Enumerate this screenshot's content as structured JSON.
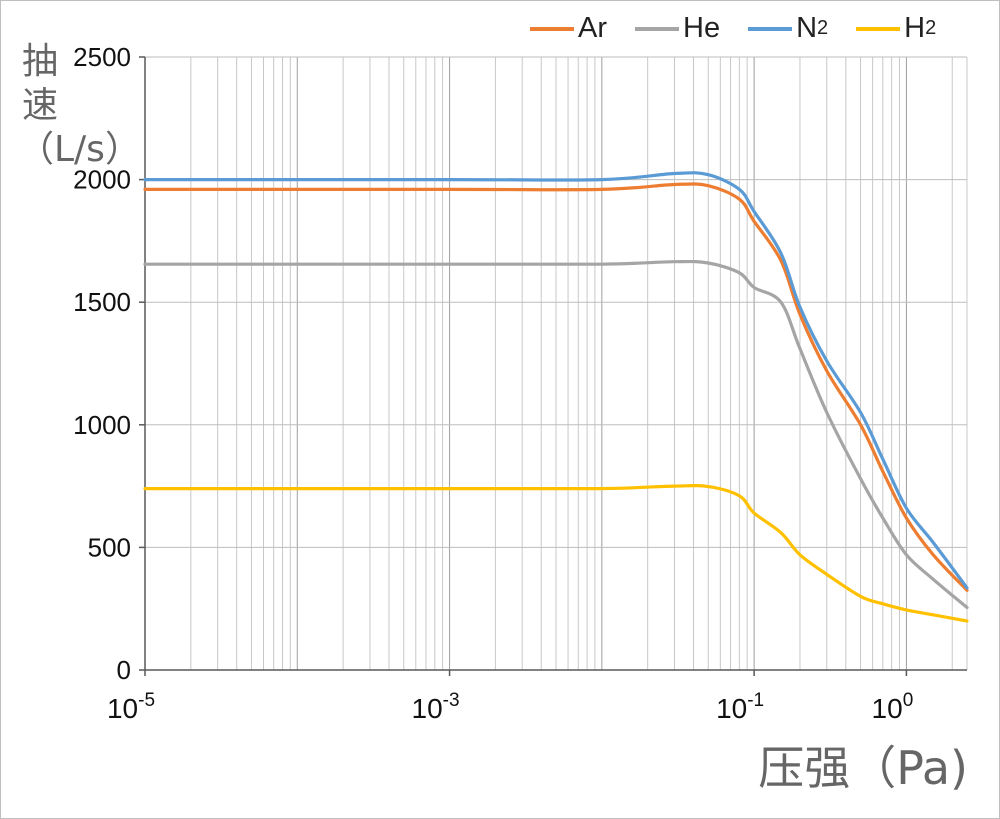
{
  "chart_data": {
    "type": "line",
    "title": "",
    "xlabel": "压强（Pa)",
    "ylabel": "抽速（L/s）",
    "xscale": "log",
    "xlim": [
      1e-05,
      2.5
    ],
    "ylim": [
      0,
      2500
    ],
    "yticks": [
      "0",
      "500",
      "1000",
      "1500",
      "2000",
      "2500"
    ],
    "xticks": [
      {
        "base": "10",
        "exp": "-5",
        "value": 1e-05
      },
      {
        "base": "10",
        "exp": "-3",
        "value": 0.001
      },
      {
        "base": "10",
        "exp": "-1",
        "value": 0.1
      },
      {
        "base": "10",
        "exp": "0",
        "value": 1
      }
    ],
    "grid": true,
    "legend_position": "top-right",
    "x": [
      1e-05,
      0.001,
      0.01,
      0.03,
      0.05,
      0.08,
      0.1,
      0.15,
      0.2,
      0.3,
      0.5,
      0.7,
      1.0,
      1.5,
      2.5
    ],
    "series": [
      {
        "name": "Ar",
        "color": "#ED7D31",
        "values": [
          1960,
          1960,
          1960,
          1980,
          1975,
          1920,
          1830,
          1670,
          1450,
          1220,
          1000,
          810,
          620,
          470,
          325
        ]
      },
      {
        "name": "He",
        "color": "#A5A5A5",
        "values": [
          1655,
          1655,
          1655,
          1665,
          1660,
          1620,
          1560,
          1500,
          1310,
          1050,
          780,
          620,
          470,
          370,
          255
        ]
      },
      {
        "name": "N2",
        "color": "#5B9BD5",
        "values": [
          2000,
          2000,
          2000,
          2025,
          2020,
          1960,
          1870,
          1700,
          1480,
          1260,
          1050,
          860,
          660,
          520,
          335
        ]
      },
      {
        "name": "H2",
        "color": "#FFC000",
        "values": [
          740,
          740,
          740,
          750,
          748,
          710,
          640,
          560,
          470,
          390,
          300,
          270,
          245,
          225,
          200
        ]
      }
    ],
    "legend": [
      {
        "base": "Ar",
        "sub": ""
      },
      {
        "base": "He",
        "sub": ""
      },
      {
        "base": "N",
        "sub": "2"
      },
      {
        "base": "H",
        "sub": "2"
      }
    ]
  }
}
